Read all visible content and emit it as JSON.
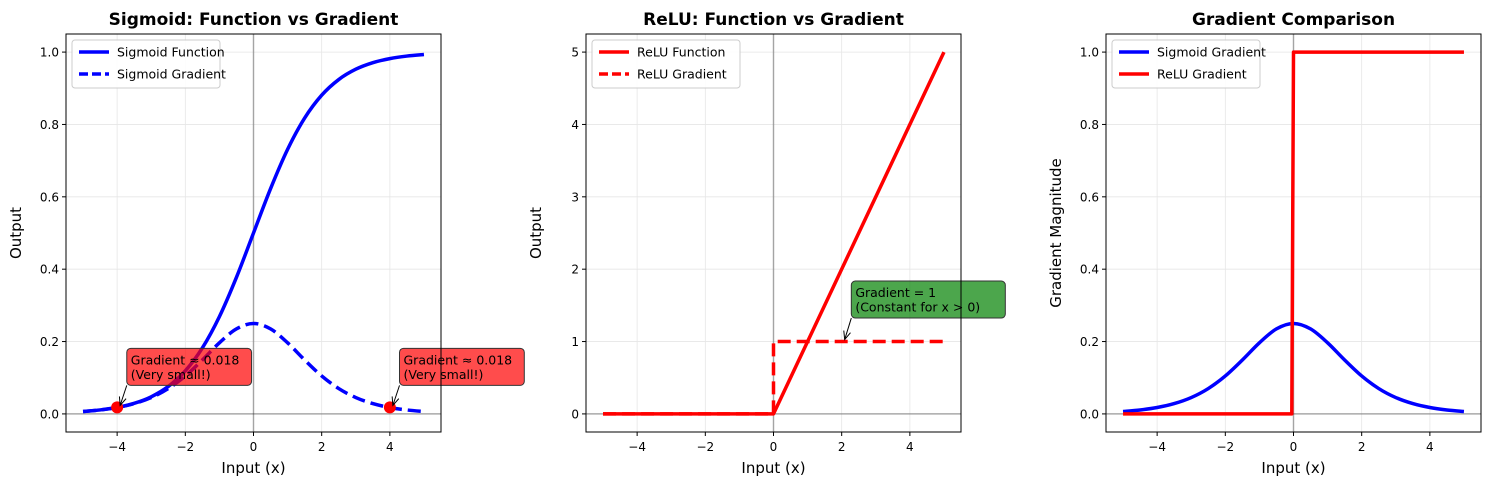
{
  "chart_data": [
    {
      "type": "line",
      "title": "Sigmoid: Function vs Gradient",
      "xlabel": "Input (x)",
      "ylabel": "Output",
      "xlim": [
        -5.5,
        5.5
      ],
      "ylim": [
        -0.05,
        1.05
      ],
      "xticks": [
        -4,
        -2,
        0,
        2,
        4
      ],
      "xtick_labels": [
        "−4",
        "−2",
        "0",
        "2",
        "4"
      ],
      "yticks": [
        0.0,
        0.2,
        0.4,
        0.6,
        0.8,
        1.0
      ],
      "ytick_labels": [
        "0.0",
        "0.2",
        "0.4",
        "0.6",
        "0.8",
        "1.0"
      ],
      "grid": true,
      "legend_position": "upper-left",
      "series": [
        {
          "name": "Sigmoid Function",
          "color": "#0000ff",
          "style": "solid",
          "x": [
            -5,
            -4.5,
            -4,
            -3.5,
            -3,
            -2.5,
            -2,
            -1.5,
            -1,
            -0.5,
            0,
            0.5,
            1,
            1.5,
            2,
            2.5,
            3,
            3.5,
            4,
            4.5,
            5
          ],
          "y": [
            0.0067,
            0.011,
            0.018,
            0.0293,
            0.0474,
            0.0759,
            0.1192,
            0.1824,
            0.2689,
            0.3775,
            0.5,
            0.6225,
            0.7311,
            0.8176,
            0.8808,
            0.9241,
            0.9526,
            0.9707,
            0.982,
            0.989,
            0.9933
          ]
        },
        {
          "name": "Sigmoid Gradient",
          "color": "#0000ff",
          "style": "dashed",
          "x": [
            -5,
            -4.5,
            -4,
            -3.5,
            -3,
            -2.5,
            -2,
            -1.5,
            -1,
            -0.5,
            0,
            0.5,
            1,
            1.5,
            2,
            2.5,
            3,
            3.5,
            4,
            4.5,
            5
          ],
          "y": [
            0.0066,
            0.0109,
            0.0177,
            0.0285,
            0.0452,
            0.0701,
            0.105,
            0.1491,
            0.1966,
            0.235,
            0.25,
            0.235,
            0.1966,
            0.1491,
            0.105,
            0.0701,
            0.0452,
            0.0285,
            0.0177,
            0.0109,
            0.0066
          ]
        }
      ],
      "points": [
        {
          "x": -4,
          "y": 0.018,
          "color": "#ff0000"
        },
        {
          "x": 4,
          "y": 0.018,
          "color": "#ff0000"
        }
      ],
      "annotations": [
        {
          "line1": "Gradient ≈ 0.018",
          "line2": "(Very small!)",
          "x": -4,
          "y": 0.018,
          "text_x": -3.6,
          "text_y": 0.09,
          "box_color": "#ff0000"
        },
        {
          "line1": "Gradient ≈ 0.018",
          "line2": "(Very small!)",
          "x": 4,
          "y": 0.018,
          "text_x": 4.4,
          "text_y": 0.09,
          "box_color": "#ff0000"
        }
      ],
      "hlines": [
        0
      ],
      "vlines": [
        0
      ]
    },
    {
      "type": "line",
      "title": "ReLU: Function vs Gradient",
      "xlabel": "Input (x)",
      "ylabel": "Output",
      "xlim": [
        -5.5,
        5.5
      ],
      "ylim": [
        -0.25,
        5.25
      ],
      "xticks": [
        -4,
        -2,
        0,
        2,
        4
      ],
      "xtick_labels": [
        "−4",
        "−2",
        "0",
        "2",
        "4"
      ],
      "yticks": [
        0,
        1,
        2,
        3,
        4,
        5
      ],
      "ytick_labels": [
        "0",
        "1",
        "2",
        "3",
        "4",
        "5"
      ],
      "grid": true,
      "legend_position": "upper-left",
      "series": [
        {
          "name": "ReLU Function",
          "color": "#ff0000",
          "style": "solid",
          "x": [
            -5,
            0,
            5
          ],
          "y": [
            0,
            0,
            5
          ]
        },
        {
          "name": "ReLU Gradient",
          "color": "#ff0000",
          "style": "dashed",
          "x": [
            -5,
            0,
            0,
            5
          ],
          "y": [
            0,
            0,
            1,
            1
          ]
        }
      ],
      "points": [],
      "annotations": [
        {
          "line1": "Gradient = 1",
          "line2": "(Constant for x > 0)",
          "x": 2,
          "y": 1,
          "text_x": 2.4,
          "text_y": 1.38,
          "box_color": "#008000"
        }
      ],
      "hlines": [
        0
      ],
      "vlines": [
        0
      ]
    },
    {
      "type": "line",
      "title": "Gradient Comparison",
      "xlabel": "Input (x)",
      "ylabel": "Gradient Magnitude",
      "xlim": [
        -5.5,
        5.5
      ],
      "ylim": [
        -0.05,
        1.05
      ],
      "xticks": [
        -4,
        -2,
        0,
        2,
        4
      ],
      "xtick_labels": [
        "−4",
        "−2",
        "0",
        "2",
        "4"
      ],
      "yticks": [
        0.0,
        0.2,
        0.4,
        0.6,
        0.8,
        1.0
      ],
      "ytick_labels": [
        "0.0",
        "0.2",
        "0.4",
        "0.6",
        "0.8",
        "1.0"
      ],
      "grid": true,
      "legend_position": "upper-left",
      "series": [
        {
          "name": "Sigmoid Gradient",
          "color": "#0000ff",
          "style": "solid",
          "x": [
            -5,
            -4.5,
            -4,
            -3.5,
            -3,
            -2.5,
            -2,
            -1.5,
            -1,
            -0.5,
            0,
            0.5,
            1,
            1.5,
            2,
            2.5,
            3,
            3.5,
            4,
            4.5,
            5
          ],
          "y": [
            0.0066,
            0.0109,
            0.0177,
            0.0285,
            0.0452,
            0.0701,
            0.105,
            0.1491,
            0.1966,
            0.235,
            0.25,
            0.235,
            0.1966,
            0.1491,
            0.105,
            0.0701,
            0.0452,
            0.0285,
            0.0177,
            0.0109,
            0.0066
          ]
        },
        {
          "name": "ReLU Gradient",
          "color": "#ff0000",
          "style": "solid",
          "x": [
            -5,
            -0.05,
            0,
            5
          ],
          "y": [
            0,
            0,
            1,
            1
          ]
        }
      ],
      "points": [],
      "annotations": [],
      "hlines": [
        0
      ],
      "vlines": [
        0
      ]
    }
  ]
}
